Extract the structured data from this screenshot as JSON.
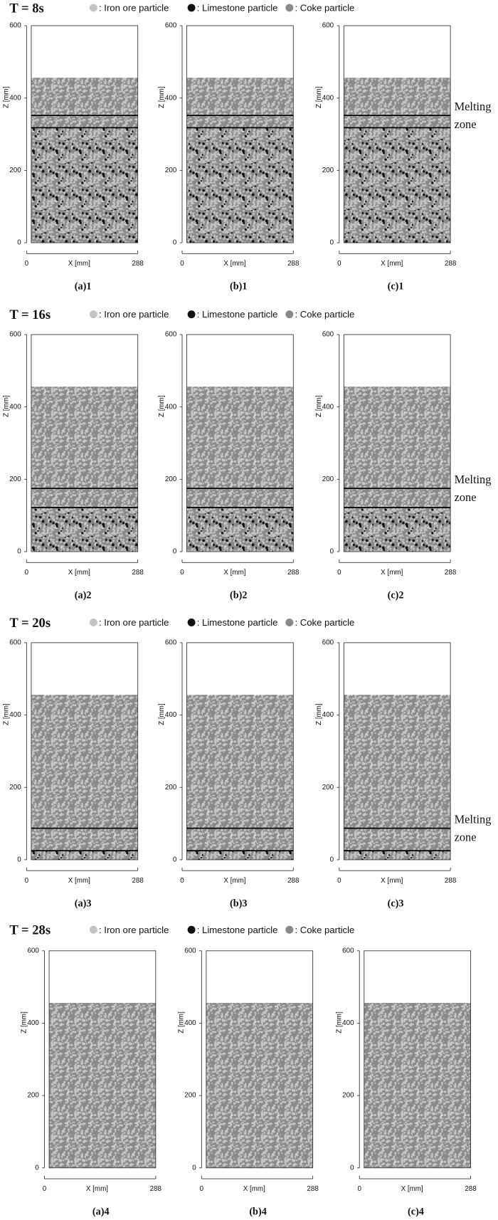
{
  "legend": [
    {
      "label": ": Iron ore particle",
      "color": "#c4c4c4"
    },
    {
      "label": ": Limestone particle",
      "color": "#111111"
    },
    {
      "label": ": Coke particle",
      "color": "#8a8a8a"
    }
  ],
  "axes": {
    "yticks": [
      0,
      200,
      400,
      600
    ],
    "ylim": [
      0,
      600
    ],
    "xticks": [
      0,
      288
    ],
    "xlim": [
      0,
      288
    ],
    "x_label": "X  [mm]",
    "z_label": "Z  [mm]"
  },
  "melting_zone_label": [
    "Melting",
    "zone"
  ],
  "rows": [
    {
      "time": "T = 8s",
      "melting_zone": [
        318,
        352
      ],
      "panels": [
        {
          "label": "(a)1"
        },
        {
          "label": "(b)1"
        },
        {
          "label": "(c)1"
        }
      ]
    },
    {
      "time": "T = 16s",
      "melting_zone": [
        122,
        175
      ],
      "panels": [
        {
          "label": "(a)2"
        },
        {
          "label": "(b)2"
        },
        {
          "label": "(c)2"
        }
      ]
    },
    {
      "time": "T = 20s",
      "melting_zone": [
        25,
        87
      ],
      "panels": [
        {
          "label": "(a)3"
        },
        {
          "label": "(b)3"
        },
        {
          "label": "(c)3"
        }
      ]
    },
    {
      "time": "T = 28s",
      "panels": [
        {
          "label": "(a)4"
        },
        {
          "label": "(b)4"
        },
        {
          "label": "(c)4"
        }
      ]
    }
  ]
}
